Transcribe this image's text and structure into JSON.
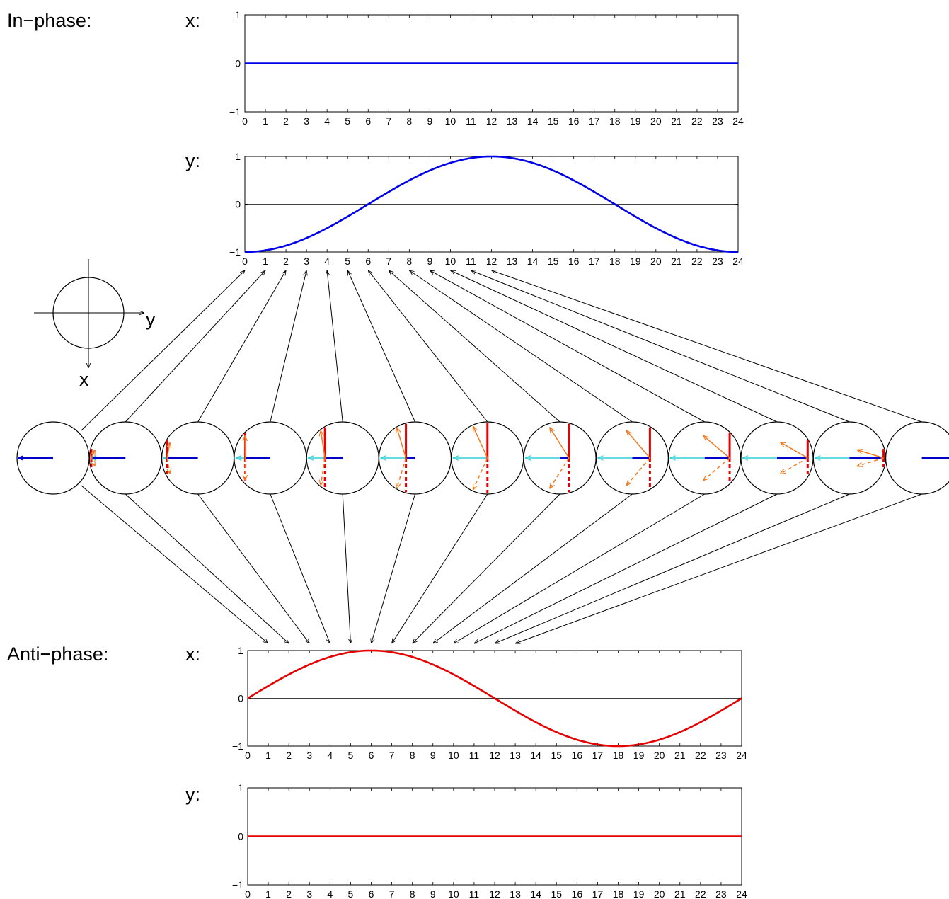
{
  "labels": {
    "in_phase": "In−phase:",
    "anti_phase": "Anti−phase:",
    "x": "x:",
    "y": "y:"
  },
  "axes_key": {
    "y": "y",
    "x": "x"
  },
  "colors": {
    "in_phase_curve": "#0000e6",
    "anti_phase_curve": "#e60000",
    "baseline": "#000000",
    "blue_vector": "#0000cc",
    "red_vector": "#e60000",
    "orange_vector": "#f07820",
    "cyan_vector": "#30d0d8",
    "connector": "#000000"
  },
  "chart_data": [
    {
      "id": "in-phase-x",
      "type": "line",
      "title": "",
      "ylim": [
        -1,
        1
      ],
      "xlim": [
        0,
        24
      ],
      "yticks": [
        "−1",
        "0",
        "1"
      ],
      "xticks": [
        "0",
        "1",
        "2",
        "3",
        "4",
        "5",
        "6",
        "7",
        "8",
        "9",
        "10",
        "11",
        "12",
        "13",
        "14",
        "15",
        "16",
        "17",
        "18",
        "19",
        "20",
        "21",
        "22",
        "23",
        "24"
      ],
      "series": [
        {
          "fn": "zero"
        }
      ]
    },
    {
      "id": "in-phase-y",
      "type": "line",
      "title": "",
      "ylim": [
        -1,
        1
      ],
      "xlim": [
        0,
        24
      ],
      "yticks": [
        "−1",
        "0",
        "1"
      ],
      "xticks": [
        "0",
        "1",
        "2",
        "3",
        "4",
        "5",
        "6",
        "7",
        "8",
        "9",
        "10",
        "11",
        "12",
        "13",
        "14",
        "15",
        "16",
        "17",
        "18",
        "19",
        "20",
        "21",
        "22",
        "23",
        "24"
      ],
      "series": [
        {
          "fn": "neg_cos"
        }
      ]
    },
    {
      "id": "anti-phase-x",
      "type": "line",
      "title": "",
      "ylim": [
        -1,
        1
      ],
      "xlim": [
        0,
        24
      ],
      "yticks": [
        "−1",
        "0",
        "1"
      ],
      "xticks": [
        "0",
        "1",
        "2",
        "3",
        "4",
        "5",
        "6",
        "7",
        "8",
        "9",
        "10",
        "11",
        "12",
        "13",
        "14",
        "15",
        "16",
        "17",
        "18",
        "19",
        "20",
        "21",
        "22",
        "23",
        "24"
      ],
      "series": [
        {
          "fn": "sin"
        }
      ]
    },
    {
      "id": "anti-phase-y",
      "type": "line",
      "title": "",
      "ylim": [
        -1,
        1
      ],
      "xlim": [
        0,
        24
      ],
      "yticks": [
        "−1",
        "0",
        "1"
      ],
      "xticks": [
        "0",
        "1",
        "2",
        "3",
        "4",
        "5",
        "6",
        "7",
        "8",
        "9",
        "10",
        "11",
        "12",
        "13",
        "14",
        "15",
        "16",
        "17",
        "18",
        "19",
        "20",
        "21",
        "22",
        "23",
        "24"
      ],
      "series": [
        {
          "fn": "zero"
        }
      ]
    }
  ],
  "phase_circles": {
    "count": 13,
    "time_points": [
      0,
      1,
      2,
      3,
      4,
      5,
      6,
      7,
      8,
      9,
      10,
      11,
      12
    ]
  }
}
